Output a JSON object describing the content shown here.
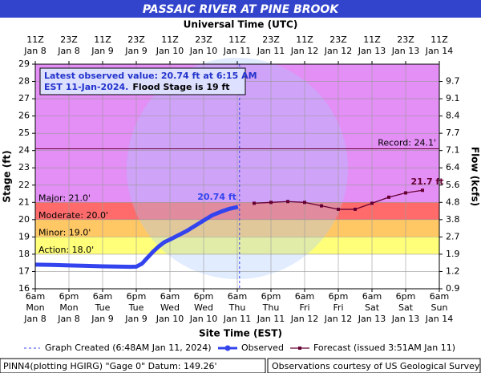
{
  "chart_data": {
    "type": "line",
    "title": "PASSAIC RIVER AT PINE BROOK",
    "x2label": "Universal Time (UTC)",
    "xlabel": "Site Time (EST)",
    "ylabel": "Stage (ft)",
    "y2label": "Flow (kcfs)",
    "xlim": [
      "2024-01-08T06:00",
      "2024-01-14T06:00"
    ],
    "xticks": [
      {
        "value": "2024-01-08T06:00",
        "label": [
          "6am",
          "Mon",
          "Jan 8"
        ]
      },
      {
        "value": "2024-01-08T18:00",
        "label": [
          "6pm",
          "Mon",
          "Jan 8"
        ]
      },
      {
        "value": "2024-01-09T06:00",
        "label": [
          "6am",
          "Tue",
          "Jan 9"
        ]
      },
      {
        "value": "2024-01-09T18:00",
        "label": [
          "6pm",
          "Tue",
          "Jan 9"
        ]
      },
      {
        "value": "2024-01-10T06:00",
        "label": [
          "6am",
          "Wed",
          "Jan 10"
        ]
      },
      {
        "value": "2024-01-10T18:00",
        "label": [
          "6pm",
          "Wed",
          "Jan 10"
        ]
      },
      {
        "value": "2024-01-11T06:00",
        "label": [
          "6am",
          "Thu",
          "Jan 11"
        ]
      },
      {
        "value": "2024-01-11T18:00",
        "label": [
          "6pm",
          "Thu",
          "Jan 11"
        ]
      },
      {
        "value": "2024-01-12T06:00",
        "label": [
          "6am",
          "Fri",
          "Jan 12"
        ]
      },
      {
        "value": "2024-01-12T18:00",
        "label": [
          "6pm",
          "Fri",
          "Jan 12"
        ]
      },
      {
        "value": "2024-01-13T06:00",
        "label": [
          "6am",
          "Sat",
          "Jan 13"
        ]
      },
      {
        "value": "2024-01-13T18:00",
        "label": [
          "6pm",
          "Sat",
          "Jan 13"
        ]
      },
      {
        "value": "2024-01-14T06:00",
        "label": [
          "6am",
          "Sun",
          "Jan 14"
        ]
      }
    ],
    "x2ticks": [
      {
        "value": "2024-01-08T06:00",
        "label": [
          "11Z",
          "Jan 8"
        ]
      },
      {
        "value": "2024-01-08T18:00",
        "label": [
          "23Z",
          "Jan 8"
        ]
      },
      {
        "value": "2024-01-09T06:00",
        "label": [
          "11Z",
          "Jan 9"
        ]
      },
      {
        "value": "2024-01-09T18:00",
        "label": [
          "23Z",
          "Jan 9"
        ]
      },
      {
        "value": "2024-01-10T06:00",
        "label": [
          "11Z",
          "Jan 10"
        ]
      },
      {
        "value": "2024-01-10T18:00",
        "label": [
          "23Z",
          "Jan 10"
        ]
      },
      {
        "value": "2024-01-11T06:00",
        "label": [
          "11Z",
          "Jan 11"
        ]
      },
      {
        "value": "2024-01-11T18:00",
        "label": [
          "23Z",
          "Jan 11"
        ]
      },
      {
        "value": "2024-01-12T06:00",
        "label": [
          "11Z",
          "Jan 12"
        ]
      },
      {
        "value": "2024-01-12T18:00",
        "label": [
          "23Z",
          "Jan 12"
        ]
      },
      {
        "value": "2024-01-13T06:00",
        "label": [
          "11Z",
          "Jan 13"
        ]
      },
      {
        "value": "2024-01-13T18:00",
        "label": [
          "23Z",
          "Jan 13"
        ]
      },
      {
        "value": "2024-01-14T06:00",
        "label": [
          "11Z",
          "Jan 14"
        ]
      }
    ],
    "ylim": [
      16,
      29
    ],
    "yticks": [
      16,
      17,
      18,
      19,
      20,
      21,
      22,
      23,
      24,
      25,
      26,
      27,
      28,
      29
    ],
    "y2ticks": [
      0.9,
      1.2,
      1.9,
      2.7,
      3.8,
      4.8,
      5.6,
      6.4,
      7.1,
      7.7,
      8.4,
      9.1,
      9.7
    ],
    "y2ticks_stage": [
      16,
      17,
      18,
      19,
      20,
      21,
      22,
      23,
      24,
      25,
      26,
      27,
      28
    ],
    "grid": true,
    "flood_categories": [
      {
        "label": "Action: 18.0'",
        "value": 18,
        "color": "#ffff7a"
      },
      {
        "label": "Minor: 19.0'",
        "value": 19,
        "color": "#ffc864"
      },
      {
        "label": "Moderate: 20.0'",
        "value": 20,
        "color": "#ff6b6b"
      },
      {
        "label": "Major: 21.0'",
        "value": 21,
        "color": "#e38ff5"
      }
    ],
    "record": {
      "label": "Record: 24.1'",
      "value": 24.1
    },
    "graph_created": {
      "label": "Graph Created (6:48AM Jan 11, 2024)",
      "x": "2024-01-11T06:48"
    },
    "annotation": [
      "Latest observed value: 20.74 ft at 6:15 AM",
      "EST 11-Jan-2024.",
      "Flood Stage is 19 ft"
    ],
    "series": [
      {
        "name": "Observed",
        "color": "#3344ee",
        "x": [
          "2024-01-08T06:00",
          "2024-01-08T12:00",
          "2024-01-08T18:00",
          "2024-01-09T00:00",
          "2024-01-09T06:00",
          "2024-01-09T12:00",
          "2024-01-09T16:00",
          "2024-01-09T18:00",
          "2024-01-09T20:00",
          "2024-01-09T22:00",
          "2024-01-10T00:00",
          "2024-01-10T02:00",
          "2024-01-10T04:00",
          "2024-01-10T06:00",
          "2024-01-10T09:00",
          "2024-01-10T12:00",
          "2024-01-10T15:00",
          "2024-01-10T18:00",
          "2024-01-10T21:00",
          "2024-01-11T00:00",
          "2024-01-11T03:00",
          "2024-01-11T06:15"
        ],
        "values": [
          17.4,
          17.38,
          17.35,
          17.33,
          17.3,
          17.28,
          17.27,
          17.28,
          17.45,
          17.8,
          18.15,
          18.45,
          18.7,
          18.85,
          19.1,
          19.35,
          19.65,
          19.95,
          20.25,
          20.45,
          20.62,
          20.74
        ],
        "value_labels": [
          null,
          null,
          null,
          null,
          null,
          null,
          null,
          null,
          null,
          null,
          null,
          null,
          null,
          null,
          null,
          null,
          null,
          null,
          null,
          null,
          null,
          "20.74 ft"
        ]
      },
      {
        "name": "Forecast (issued 3:51AM Jan 11)",
        "color": "#660033",
        "x": [
          "2024-01-11T12:00",
          "2024-01-11T18:00",
          "2024-01-12T00:00",
          "2024-01-12T06:00",
          "2024-01-12T12:00",
          "2024-01-12T18:00",
          "2024-01-13T00:00",
          "2024-01-13T06:00",
          "2024-01-13T12:00",
          "2024-01-13T18:00",
          "2024-01-14T00:00"
        ],
        "values": [
          20.95,
          21.0,
          21.05,
          21.0,
          20.8,
          20.6,
          20.6,
          20.95,
          21.3,
          21.55,
          21.7
        ],
        "value_labels": [
          null,
          null,
          null,
          null,
          null,
          null,
          null,
          null,
          null,
          null,
          "21.7 ft"
        ]
      }
    ]
  },
  "footer": {
    "left": "PINN4(plotting HGIRG) \"Gage 0\" Datum: 149.26'",
    "right": "Observations courtesy of US Geological Survey"
  }
}
